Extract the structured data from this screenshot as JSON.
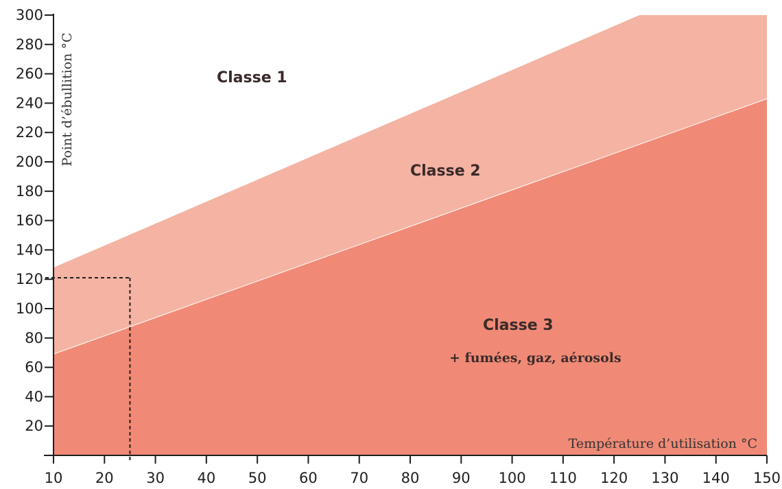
{
  "chart_data": {
    "type": "area",
    "xlabel": "Température d’utilisation °C",
    "ylabel": "Point d’ébullition °C",
    "xlim": [
      10,
      150
    ],
    "ylim": [
      0,
      300
    ],
    "x_ticks": [
      10,
      20,
      30,
      40,
      50,
      60,
      70,
      80,
      90,
      100,
      110,
      120,
      130,
      140,
      150
    ],
    "y_ticks": [
      20,
      40,
      60,
      80,
      100,
      120,
      140,
      160,
      180,
      200,
      220,
      240,
      260,
      280,
      300
    ],
    "regions": [
      {
        "name": "Classe 1",
        "label": "Classe 1",
        "color": "#ffffff"
      },
      {
        "name": "Classe 2",
        "label": "Classe 2",
        "color": "#f4b3a3"
      },
      {
        "name": "Classe 3",
        "label": "Classe 3",
        "sublabel": "+ fumées, gaz, aérosols",
        "color": "#f08a76"
      }
    ],
    "boundaries": [
      {
        "between": [
          "Classe 1",
          "Classe 2"
        ],
        "x": [
          10,
          125,
          150
        ],
        "y": [
          128,
          300,
          300
        ]
      },
      {
        "between": [
          "Classe 2",
          "Classe 3"
        ],
        "x": [
          10,
          150
        ],
        "y": [
          69,
          243
        ]
      }
    ],
    "reference_point": {
      "x": 25,
      "y": 121,
      "style": "dashed"
    },
    "grid": false
  }
}
